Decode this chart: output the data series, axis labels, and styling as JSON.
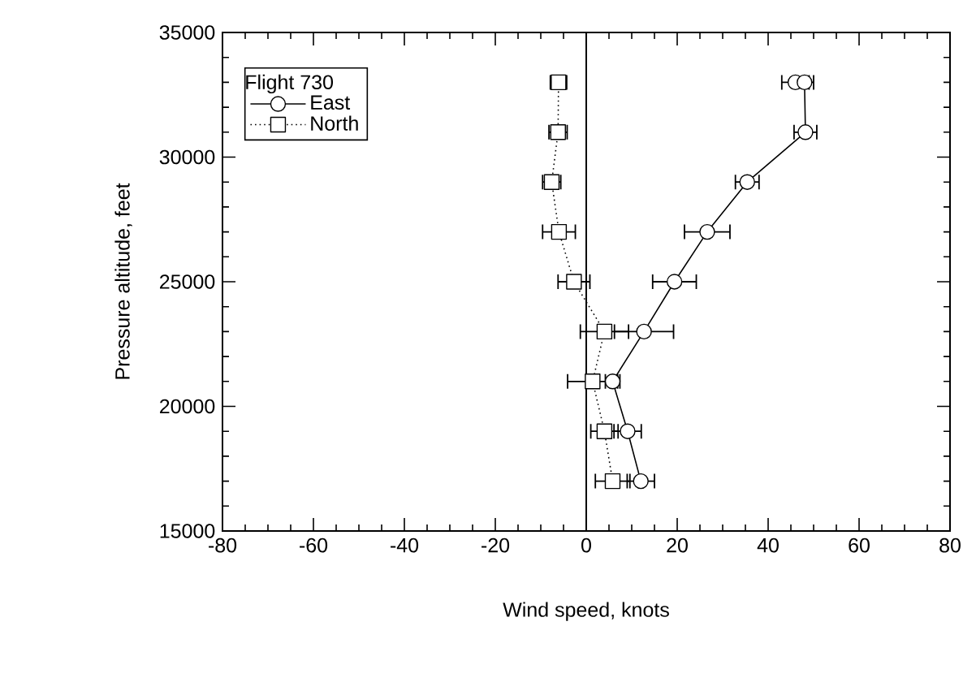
{
  "chart_data": {
    "type": "line",
    "xlabel": "Wind speed, knots",
    "ylabel": "Pressure altitude, feet",
    "legend_title": "Flight 730",
    "legend": "top left",
    "grid": false,
    "xlim": [
      -80,
      80
    ],
    "xticks": [
      -80,
      -60,
      -40,
      -20,
      0,
      20,
      40,
      60,
      80
    ],
    "ylim": [
      15000,
      35000
    ],
    "yticks": [
      15000,
      20000,
      25000,
      30000,
      35000
    ],
    "ref_lines": [
      {
        "axis": "x",
        "value": 0,
        "color": "#000000"
      }
    ],
    "series": [
      {
        "name": "East",
        "color": "#000000",
        "marker": "circle",
        "line_style": "solid",
        "x": [
          46,
          48,
          48.2,
          35.4,
          26.6,
          19.4,
          12.7,
          5.8,
          9.1,
          12.0
        ],
        "values": [
          33000,
          33000,
          31000,
          29000,
          27000,
          25000,
          23000,
          21000,
          19000,
          17000
        ],
        "xerrors": [
          3,
          2,
          2.5,
          2.6,
          5,
          4.8,
          6.5,
          1.6,
          3,
          3
        ]
      },
      {
        "name": "North",
        "color": "#000000",
        "marker": "square",
        "line_style": "dotted",
        "x": [
          -6.1,
          -6.2,
          -7.6,
          -6.0,
          -2.7,
          4.0,
          1.4,
          4.0,
          5.8
        ],
        "values": [
          33000,
          31000,
          29000,
          27000,
          25000,
          23000,
          21000,
          19000,
          17000
        ],
        "xerrors": [
          1.8,
          2,
          2,
          3.6,
          3.5,
          5.3,
          5.5,
          3,
          3.8
        ]
      }
    ]
  }
}
